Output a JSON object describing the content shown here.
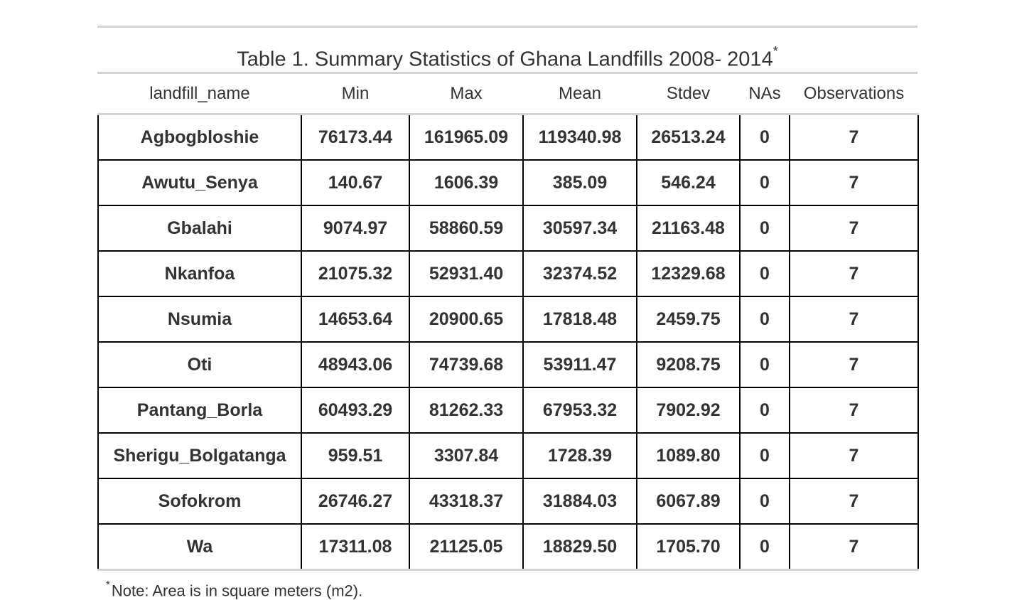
{
  "table": {
    "title": "Table 1. Summary Statistics of Ghana Landfills 2008- 2014",
    "title_marker": "*",
    "columns": [
      "landfill_name",
      "Min",
      "Max",
      "Mean",
      "Stdev",
      "NAs",
      "Observations"
    ],
    "rows": [
      [
        "Agbogbloshie",
        "76173.44",
        "161965.09",
        "119340.98",
        "26513.24",
        "0",
        "7"
      ],
      [
        "Awutu_Senya",
        "140.67",
        "1606.39",
        "385.09",
        "546.24",
        "0",
        "7"
      ],
      [
        "Gbalahi",
        "9074.97",
        "58860.59",
        "30597.34",
        "21163.48",
        "0",
        "7"
      ],
      [
        "Nkanfoa",
        "21075.32",
        "52931.40",
        "32374.52",
        "12329.68",
        "0",
        "7"
      ],
      [
        "Nsumia",
        "14653.64",
        "20900.65",
        "17818.48",
        "2459.75",
        "0",
        "7"
      ],
      [
        "Oti",
        "48943.06",
        "74739.68",
        "53911.47",
        "9208.75",
        "0",
        "7"
      ],
      [
        "Pantang_Borla",
        "60493.29",
        "81262.33",
        "67953.32",
        "7902.92",
        "0",
        "7"
      ],
      [
        "Sherigu_Bolgatanga",
        "959.51",
        "3307.84",
        "1728.39",
        "1089.80",
        "0",
        "7"
      ],
      [
        "Sofokrom",
        "26746.27",
        "43318.37",
        "31884.03",
        "6067.89",
        "0",
        "7"
      ],
      [
        "Wa",
        "17311.08",
        "21125.05",
        "18829.50",
        "1705.70",
        "0",
        "7"
      ]
    ],
    "footnote_marker": "*",
    "footnote": "Note: Area is in square meters (m2)."
  },
  "colors": {
    "text": "#333333",
    "rule": "#d3d3d3",
    "cell_border": "#000000"
  }
}
